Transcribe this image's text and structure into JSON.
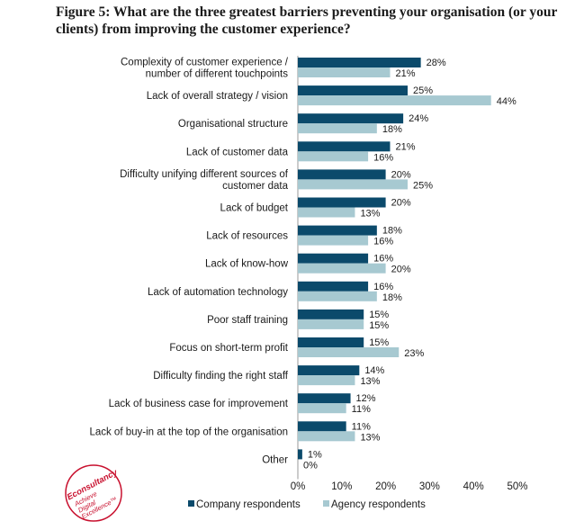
{
  "figure": {
    "title": "Figure 5: What are the three greatest barriers preventing your organisation (or your clients) from improving the customer experience?"
  },
  "logo": {
    "brand": "Econsultancy",
    "tagline_lines": [
      "Achieve",
      "Digital",
      "Excellence™"
    ],
    "color": "#c8102e"
  },
  "chart_data": {
    "type": "bar",
    "orientation": "horizontal",
    "title": "Figure 5: What are the three greatest barriers preventing your organisation (or your clients) from improving the customer experience?",
    "categories": [
      [
        "Complexity of customer experience /",
        "number of different touchpoints"
      ],
      [
        "Lack of overall strategy / vision"
      ],
      [
        "Organisational structure"
      ],
      [
        "Lack of customer data"
      ],
      [
        "Difficulty unifying different sources of",
        "customer data"
      ],
      [
        "Lack of budget"
      ],
      [
        "Lack of resources"
      ],
      [
        "Lack of know-how"
      ],
      [
        "Lack of automation technology"
      ],
      [
        "Poor staff training"
      ],
      [
        "Focus on short-term profit"
      ],
      [
        "Difficulty finding the right staff"
      ],
      [
        "Lack of business case for improvement"
      ],
      [
        "Lack of buy-in at the top of the organisation"
      ],
      [
        "Other"
      ]
    ],
    "series": [
      {
        "name": "Company respondents",
        "color": "#0b4a6b",
        "values": [
          28,
          25,
          24,
          21,
          20,
          20,
          18,
          16,
          16,
          15,
          15,
          14,
          12,
          11,
          1
        ]
      },
      {
        "name": "Agency respondents",
        "color": "#a7c9d1",
        "values": [
          21,
          44,
          18,
          16,
          25,
          13,
          16,
          20,
          18,
          15,
          23,
          13,
          11,
          13,
          0
        ]
      }
    ],
    "value_suffix": "%",
    "xlim": [
      0,
      50
    ],
    "xticks": [
      0,
      10,
      20,
      30,
      40,
      50
    ],
    "xtick_labels": [
      "0%",
      "10%",
      "20%",
      "30%",
      "40%",
      "50%"
    ],
    "legend_position": "bottom-center"
  }
}
